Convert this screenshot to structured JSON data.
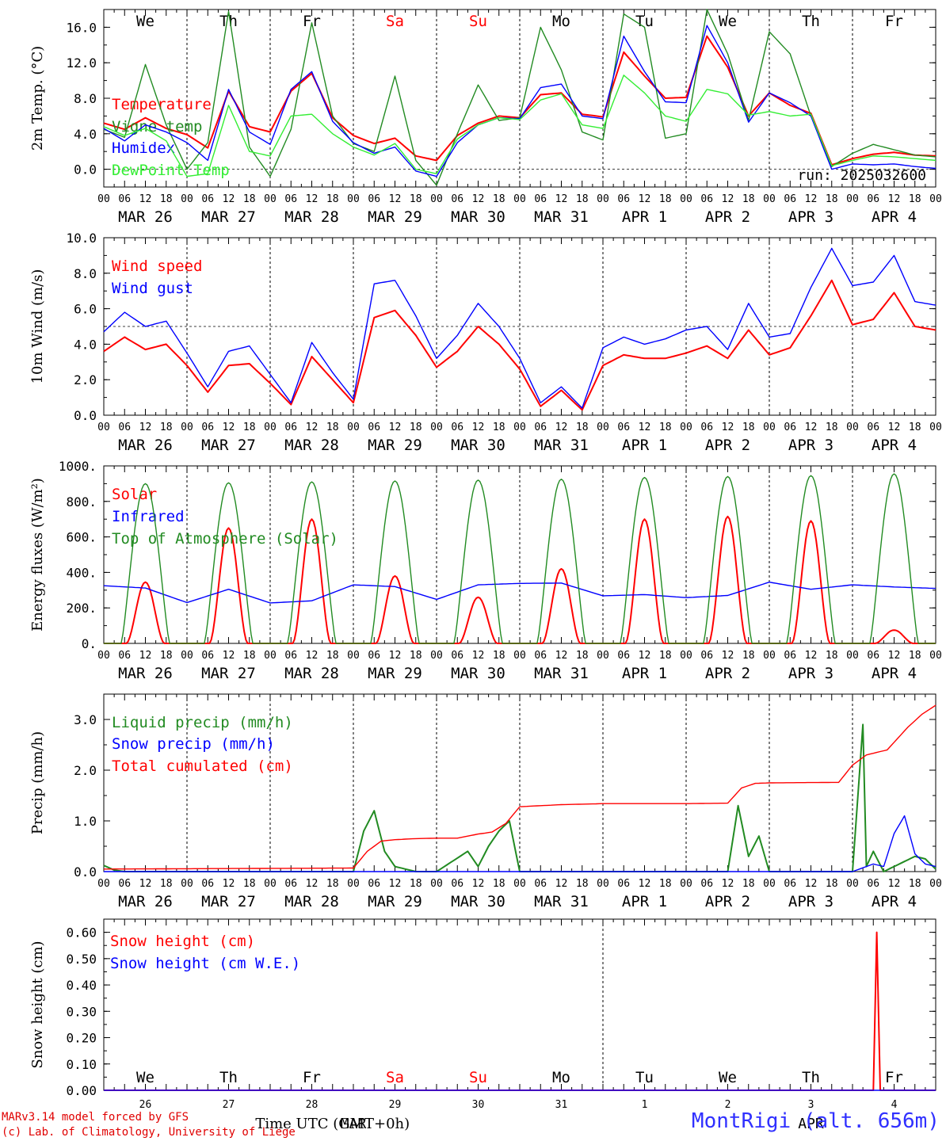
{
  "common": {
    "days": [
      "MAR 26",
      "MAR 27",
      "MAR 28",
      "MAR 29",
      "MAR 30",
      "MAR 31",
      "APR  1",
      "APR  2",
      "APR  3",
      "APR  4"
    ],
    "day_hours": [
      "00",
      "06",
      "12",
      "18"
    ],
    "final_hour": "00",
    "weekdays": [
      "We",
      "Th",
      "Fr",
      "Sa",
      "Su",
      "Mo",
      "Tu",
      "We",
      "Th",
      "Fr"
    ],
    "weekend_color": "#ff0000",
    "weekday_color": "#000000",
    "snow_day_numbers": [
      "26",
      "27",
      "28",
      "29",
      "30",
      "31",
      "1",
      "2",
      "3",
      "4"
    ]
  },
  "chart_data": [
    {
      "type": "line",
      "ylabel": "2m Temp. (°C)",
      "ylim": [
        -2,
        18
      ],
      "yticks": [
        "0.0",
        "4.0",
        "8.0",
        "12.0",
        "16.0"
      ],
      "reference_line": 0,
      "annotation": "run: 2025032600",
      "x_unit": "hours since MAR 26 00 UTC",
      "series": [
        {
          "name": "Temperature",
          "color": "#ff0000",
          "x": [
            0,
            6,
            12,
            18,
            24,
            30,
            36,
            42,
            48,
            54,
            60,
            66,
            72,
            78,
            84,
            90,
            96,
            102,
            108,
            114,
            120,
            126,
            132,
            138,
            144,
            150,
            156,
            162,
            168,
            174,
            180,
            186,
            192,
            198,
            204,
            210,
            216,
            222,
            228,
            234,
            240
          ],
          "y": [
            5.2,
            4.5,
            5.8,
            4.6,
            3.9,
            2.4,
            8.8,
            4.8,
            4.2,
            8.8,
            10.8,
            5.8,
            3.8,
            2.9,
            3.5,
            1.5,
            1.0,
            3.8,
            5.2,
            6.0,
            5.8,
            8.4,
            8.6,
            6.2,
            5.9,
            13.2,
            10.5,
            8.0,
            8.1,
            15.0,
            11.5,
            6.0,
            8.6,
            7.2,
            6.3,
            0.5,
            1.2,
            1.7,
            1.9,
            1.6,
            1.5
          ]
        },
        {
          "name": "Vigne temp",
          "color": "#228b22",
          "x": [
            0,
            6,
            12,
            18,
            24,
            30,
            36,
            42,
            48,
            54,
            60,
            66,
            72,
            78,
            84,
            90,
            96,
            102,
            108,
            114,
            120,
            126,
            132,
            138,
            144,
            150,
            156,
            162,
            168,
            174,
            180,
            186,
            192,
            198,
            204,
            210,
            216,
            222,
            228,
            234,
            240
          ],
          "y": [
            4.5,
            3.6,
            11.8,
            5.0,
            0.0,
            3.0,
            17.8,
            2.5,
            -0.8,
            4.5,
            16.5,
            6.0,
            2.9,
            2.0,
            10.5,
            1.0,
            -1.8,
            4.0,
            9.5,
            5.5,
            5.8,
            16.0,
            11.2,
            4.2,
            3.3,
            17.5,
            16.0,
            3.5,
            4.0,
            18.0,
            13.0,
            5.5,
            15.5,
            13.0,
            6.0,
            0.3,
            1.8,
            2.8,
            2.2,
            1.6,
            1.4
          ]
        },
        {
          "name": "Humidex",
          "color": "#0000ff",
          "x": [
            0,
            6,
            12,
            18,
            24,
            30,
            36,
            42,
            48,
            54,
            60,
            66,
            72,
            78,
            84,
            90,
            96,
            102,
            108,
            114,
            120,
            126,
            132,
            138,
            144,
            150,
            156,
            162,
            168,
            174,
            180,
            186,
            192,
            198,
            204,
            210,
            216,
            222,
            228,
            234,
            240
          ],
          "y": [
            4.6,
            3.2,
            5.0,
            4.2,
            3.0,
            1.0,
            9.0,
            4.2,
            2.8,
            9.0,
            11.0,
            5.4,
            3.0,
            1.8,
            2.5,
            -0.2,
            -0.8,
            3.0,
            5.0,
            5.8,
            5.7,
            9.2,
            9.6,
            6.0,
            5.7,
            15.0,
            11.0,
            7.6,
            7.5,
            16.2,
            12.0,
            5.3,
            8.6,
            7.5,
            6.0,
            0.0,
            0.6,
            0.5,
            0.6,
            0.3,
            0.1
          ]
        },
        {
          "name": "DewPoint Temp",
          "color": "#33ee33",
          "x": [
            0,
            6,
            12,
            18,
            24,
            30,
            36,
            42,
            48,
            54,
            60,
            66,
            72,
            78,
            84,
            90,
            96,
            102,
            108,
            114,
            120,
            126,
            132,
            138,
            144,
            150,
            156,
            162,
            168,
            174,
            180,
            186,
            192,
            198,
            204,
            210,
            216,
            222,
            228,
            234,
            240
          ],
          "y": [
            4.8,
            3.8,
            4.6,
            3.2,
            -0.8,
            -0.5,
            7.2,
            2.0,
            1.5,
            6.0,
            6.2,
            4.0,
            2.5,
            1.6,
            2.9,
            0.0,
            -0.5,
            3.4,
            5.0,
            5.8,
            5.6,
            7.8,
            8.5,
            5.0,
            4.6,
            10.6,
            8.6,
            6.0,
            5.4,
            9.0,
            8.5,
            6.1,
            6.5,
            6.0,
            6.2,
            0.4,
            1.0,
            1.5,
            1.4,
            1.2,
            1.0
          ]
        }
      ]
    },
    {
      "type": "line",
      "ylabel": "10m Wind (m/s)",
      "ylim": [
        0,
        10
      ],
      "yticks": [
        "0.0",
        "2.0",
        "4.0",
        "6.0",
        "8.0",
        "10.0"
      ],
      "reference_line": 5,
      "x_unit": "hours since MAR 26 00 UTC",
      "series": [
        {
          "name": "Wind speed",
          "color": "#ff0000",
          "x": [
            0,
            6,
            12,
            18,
            24,
            30,
            36,
            42,
            48,
            54,
            60,
            66,
            72,
            78,
            84,
            90,
            96,
            102,
            108,
            114,
            120,
            126,
            132,
            138,
            144,
            150,
            156,
            162,
            168,
            174,
            180,
            186,
            192,
            198,
            204,
            210,
            216,
            222,
            228,
            234,
            240
          ],
          "y": [
            3.6,
            4.4,
            3.7,
            4.0,
            2.8,
            1.3,
            2.8,
            2.9,
            1.8,
            0.6,
            3.3,
            2.0,
            0.7,
            5.5,
            5.9,
            4.5,
            2.7,
            3.6,
            5.0,
            4.0,
            2.6,
            0.5,
            1.4,
            0.3,
            2.8,
            3.4,
            3.2,
            3.2,
            3.5,
            3.9,
            3.2,
            4.8,
            3.4,
            3.8,
            5.6,
            7.6,
            5.1,
            5.4,
            6.9,
            5.0,
            4.8
          ]
        },
        {
          "name": "Wind gust",
          "color": "#0000ff",
          "x": [
            0,
            6,
            12,
            18,
            24,
            30,
            36,
            42,
            48,
            54,
            60,
            66,
            72,
            78,
            84,
            90,
            96,
            102,
            108,
            114,
            120,
            126,
            132,
            138,
            144,
            150,
            156,
            162,
            168,
            174,
            180,
            186,
            192,
            198,
            204,
            210,
            216,
            222,
            228,
            234,
            240
          ],
          "y": [
            4.7,
            5.8,
            5.0,
            5.3,
            3.5,
            1.6,
            3.6,
            3.9,
            2.3,
            0.7,
            4.1,
            2.4,
            0.9,
            7.4,
            7.6,
            5.6,
            3.2,
            4.5,
            6.3,
            5.0,
            3.2,
            0.7,
            1.6,
            0.4,
            3.8,
            4.4,
            4.0,
            4.3,
            4.8,
            5.0,
            3.7,
            6.3,
            4.4,
            4.6,
            7.2,
            9.4,
            7.3,
            7.5,
            9.0,
            6.4,
            6.2
          ]
        }
      ]
    },
    {
      "type": "line",
      "ylabel": "Energy fluxes (W/m²)",
      "ylim": [
        0,
        1000
      ],
      "yticks": [
        "0.",
        "200.",
        "400.",
        "600.",
        "800.",
        "1000."
      ],
      "x_unit": "hours since MAR 26 00 UTC",
      "series": [
        {
          "name": "Solar",
          "color": "#ff0000",
          "daily_peak": [
            345,
            650,
            700,
            380,
            260,
            420,
            700,
            715,
            690,
            75
          ]
        },
        {
          "name": "Infrared",
          "color": "#0000ff",
          "x": [
            0,
            12,
            24,
            36,
            48,
            60,
            72,
            84,
            96,
            108,
            120,
            132,
            144,
            156,
            168,
            180,
            192,
            204,
            216,
            228,
            240
          ],
          "y": [
            325,
            312,
            230,
            305,
            228,
            240,
            330,
            320,
            248,
            330,
            338,
            340,
            268,
            275,
            258,
            270,
            345,
            305,
            330,
            318,
            310
          ]
        },
        {
          "name": "Top of Atmosphere (Solar)",
          "color": "#228b22",
          "daily_peak": [
            900,
            905,
            910,
            915,
            920,
            925,
            935,
            940,
            945,
            955
          ]
        }
      ]
    },
    {
      "type": "line",
      "ylabel": "Precip (mm/h)",
      "ylim": [
        0,
        3.5
      ],
      "yticks": [
        "0.0",
        "1.0",
        "2.0",
        "3.0"
      ],
      "x_unit": "hours since MAR 26 00 UTC",
      "series": [
        {
          "name": "Liquid precip (mm/h)",
          "color": "#228b22",
          "x": [
            0,
            3,
            6,
            72,
            75,
            78,
            81,
            84,
            90,
            96,
            105,
            108,
            111,
            114,
            117,
            120,
            180,
            183,
            186,
            189,
            192,
            216,
            219,
            220,
            222,
            225,
            228,
            231,
            234,
            237,
            240
          ],
          "y": [
            0.12,
            0.03,
            0.0,
            0.0,
            0.8,
            1.2,
            0.4,
            0.1,
            0.0,
            0.0,
            0.4,
            0.1,
            0.5,
            0.8,
            1.0,
            0.0,
            0.0,
            1.3,
            0.3,
            0.7,
            0.0,
            0.0,
            2.9,
            0.1,
            0.4,
            0.0,
            0.1,
            0.2,
            0.3,
            0.25,
            0.05
          ]
        },
        {
          "name": "Snow precip (mm/h)",
          "color": "#0000ff",
          "x": [
            0,
            216,
            222,
            225,
            228,
            231,
            234,
            237,
            240
          ],
          "y": [
            0.0,
            0.0,
            0.15,
            0.1,
            0.75,
            1.1,
            0.35,
            0.15,
            0.1
          ]
        },
        {
          "name": "Total cumulated (cm)",
          "color": "#ff0000",
          "x": [
            0,
            72,
            76,
            80,
            84,
            90,
            96,
            102,
            108,
            112,
            116,
            120,
            132,
            144,
            168,
            180,
            184,
            188,
            192,
            212,
            216,
            220,
            226,
            232,
            236,
            240
          ],
          "y": [
            0.05,
            0.07,
            0.4,
            0.6,
            0.63,
            0.65,
            0.66,
            0.66,
            0.74,
            0.78,
            0.95,
            1.28,
            1.32,
            1.34,
            1.34,
            1.35,
            1.65,
            1.74,
            1.75,
            1.76,
            2.1,
            2.3,
            2.4,
            2.85,
            3.1,
            3.28
          ]
        }
      ]
    },
    {
      "type": "line",
      "ylabel": "Snow height (cm)",
      "ylim": [
        0,
        0.65
      ],
      "yticks": [
        "0.00",
        "0.10",
        "0.20",
        "0.30",
        "0.40",
        "0.50",
        "0.60"
      ],
      "xlabel": "Time UTC (GMT+0h)",
      "month_labels": [
        "MAR",
        "APR"
      ],
      "x_unit": "hours since MAR 26 00 UTC",
      "series": [
        {
          "name": "Snow height (cm)",
          "color": "#ff0000",
          "x": [
            0,
            222,
            223,
            224,
            240
          ],
          "y": [
            0.0,
            0.0,
            0.6,
            0.0,
            0.0
          ]
        },
        {
          "name": "Snow height (cm W.E.)",
          "color": "#0000ff",
          "x": [
            0,
            240
          ],
          "y": [
            0.0,
            0.0
          ]
        }
      ]
    }
  ],
  "footer": {
    "model": "MARv3.14 model forced by GFS",
    "credit": "(c) Lab. of Climatology, University of Liege",
    "station": "MontRigi (alt. 656m)"
  }
}
